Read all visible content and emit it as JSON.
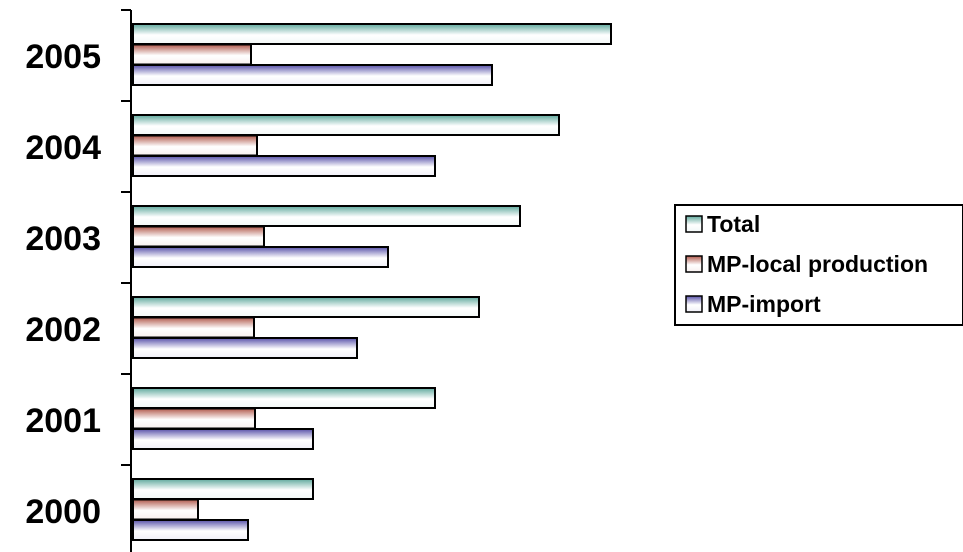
{
  "chart_data": {
    "type": "bar",
    "orientation": "horizontal",
    "categories": [
      "2000",
      "2001",
      "2002",
      "2003",
      "2004",
      "2005"
    ],
    "series": [
      {
        "name": "Total",
        "values": [
          180,
          302,
          346,
          387,
          426,
          478
        ],
        "color": "#5fa89c"
      },
      {
        "name": "MP-local production",
        "values": [
          65,
          122,
          121,
          131,
          124,
          118
        ],
        "color": "#b0584a"
      },
      {
        "name": "MP-import",
        "values": [
          115,
          180,
          224,
          255,
          302,
          359
        ],
        "color": "#5750a8"
      }
    ],
    "xlim": [
      0,
      500
    ],
    "grid": false,
    "legend_position": "right"
  }
}
